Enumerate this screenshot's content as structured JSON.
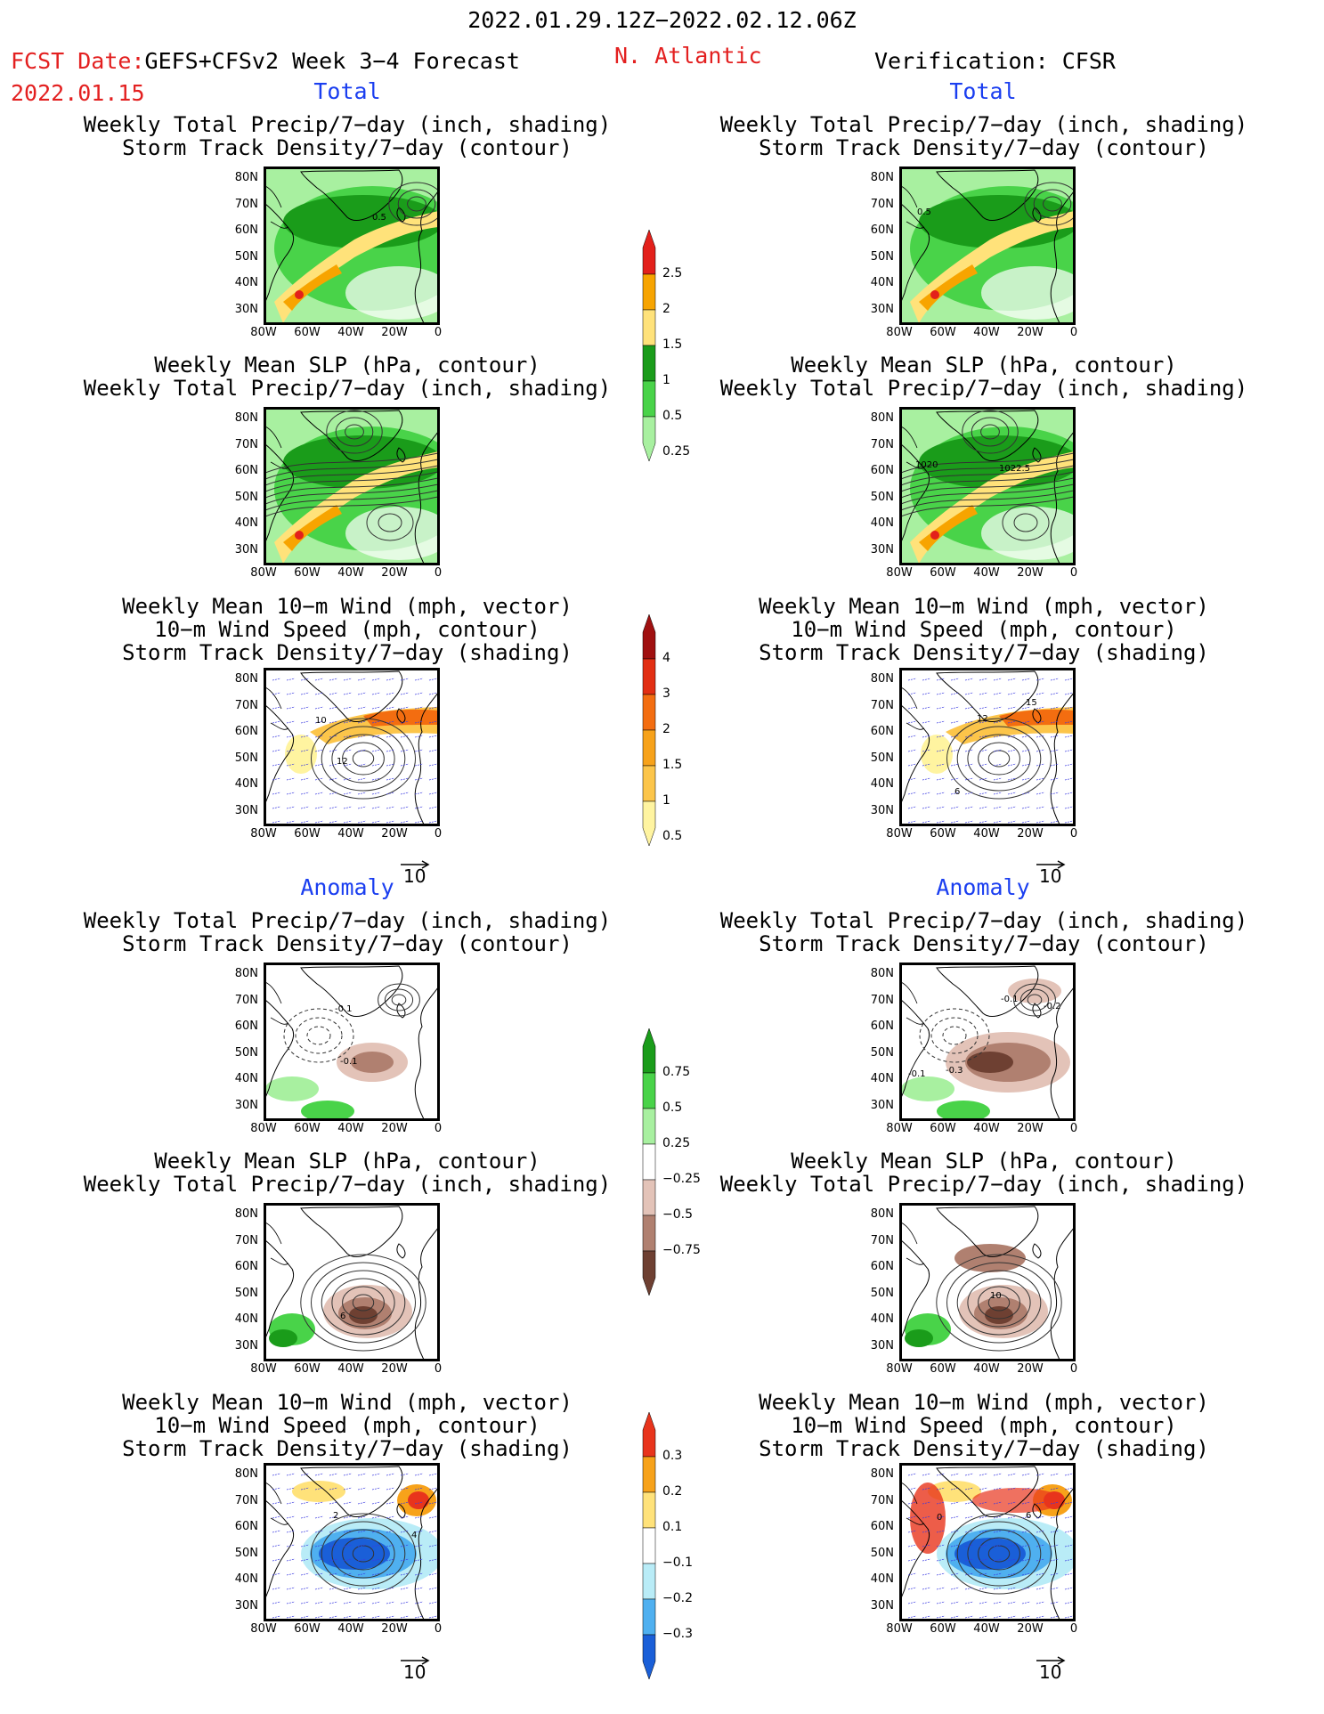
{
  "header": {
    "period": "2022.01.29.12Z−2022.02.12.06Z",
    "fcst_label": "FCST Date:",
    "model": "GEFS+CFSv2 Week 3−4 Forecast",
    "fcst_date": "2022.01.15",
    "region": "N. Atlantic",
    "verification": "Verification: CFSR"
  },
  "sections": {
    "total": "Total",
    "anomaly": "Anomaly"
  },
  "panels": {
    "precip_storm": [
      "Weekly Total Precip/7−day (inch, shading)",
      "Storm Track Density/7−day (contour)"
    ],
    "slp_precip": [
      "Weekly Mean SLP (hPa, contour)",
      "Weekly Total Precip/7−day (inch, shading)"
    ],
    "wind_storm": [
      "Weekly Mean 10−m Wind (mph, vector)",
      "10−m Wind Speed (mph, contour)",
      "Storm Track Density/7−day (shading)"
    ]
  },
  "axes": {
    "lat": [
      "80N",
      "70N",
      "60N",
      "50N",
      "40N",
      "30N"
    ],
    "lon": [
      "80W",
      "60W",
      "40W",
      "20W",
      "0"
    ]
  },
  "vector_ref": "10",
  "contour_labels": {
    "l1": "0.5",
    "r1": "0.5",
    "r2a": "1020",
    "r2b": "1022.5",
    "l3a": "10",
    "l3b": "12",
    "r3a": "12",
    "r3b": "15",
    "r3c": "6",
    "l4a": "-0.1",
    "l4b": "-0.1",
    "r4a": "-0.1",
    "r4b": "-0.2",
    "r4c": "-0.3",
    "r4d": "-0.1",
    "l5": "6",
    "r5": "10",
    "l6a": "2",
    "l6b": "4",
    "r6a": "0",
    "r6b": "6"
  },
  "colorbars": {
    "precip_total": {
      "labels": [
        "2.5",
        "2",
        "1.5",
        "1",
        "0.5",
        "0.25"
      ],
      "colors": [
        "#e3201b",
        "#f7a400",
        "#ffe27a",
        "#1a9c1a",
        "#49d349",
        "#a8f0a0"
      ]
    },
    "storm_total": {
      "labels": [
        "4",
        "3",
        "2",
        "1.5",
        "1",
        "0.5"
      ],
      "colors": [
        "#a01010",
        "#e22e12",
        "#f36d10",
        "#f7a21a",
        "#fcc54a",
        "#fff4a0"
      ]
    },
    "precip_anom": {
      "labels": [
        "0.75",
        "0.5",
        "0.25",
        "−0.25",
        "−0.5",
        "−0.75"
      ],
      "colors": [
        "#1a9c1a",
        "#49d349",
        "#a8f0a0",
        "#ffffff",
        "#e3c3b8",
        "#b08070",
        "#6e4032"
      ]
    },
    "storm_anom": {
      "labels": [
        "0.3",
        "0.2",
        "0.1",
        "−0.1",
        "−0.2",
        "−0.3"
      ],
      "colors": [
        "#e8341c",
        "#f7a21a",
        "#ffe27a",
        "#ffffff",
        "#b9ecf7",
        "#4fb0f0",
        "#1a5fd8"
      ]
    }
  },
  "colors": {
    "forecast_red": "#e32020",
    "section_blue": "#1a3ef0"
  }
}
